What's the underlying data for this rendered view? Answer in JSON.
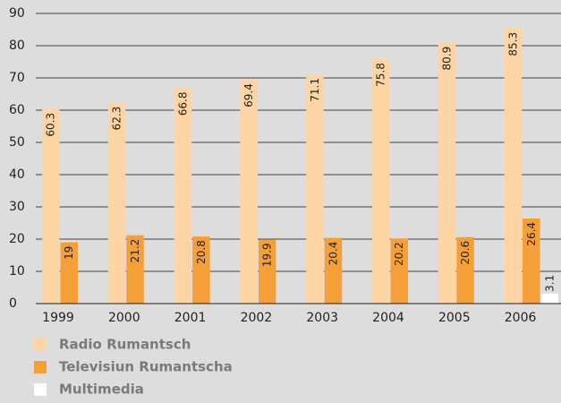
{
  "chart_data": {
    "type": "bar",
    "categories": [
      "1999",
      "2000",
      "2001",
      "2002",
      "2003",
      "2004",
      "2005",
      "2006"
    ],
    "series": [
      {
        "name": "Radio Rumantsch",
        "color": "#fdd4a3",
        "values": [
          60.3,
          62.3,
          66.8,
          69.4,
          71.1,
          75.8,
          80.9,
          85.3
        ]
      },
      {
        "name": "Televisiun Rumantscha",
        "color": "#f59f38",
        "values": [
          19,
          21.2,
          20.8,
          19.9,
          20.4,
          20.2,
          20.6,
          26.4
        ]
      },
      {
        "name": "Multimedia",
        "color": "#ffffff",
        "values": [
          null,
          null,
          null,
          null,
          null,
          null,
          null,
          3.1
        ]
      }
    ],
    "ylim": [
      0,
      90
    ],
    "yticks": [
      0,
      10,
      20,
      30,
      40,
      50,
      60,
      70,
      80,
      90
    ],
    "grid": true
  }
}
